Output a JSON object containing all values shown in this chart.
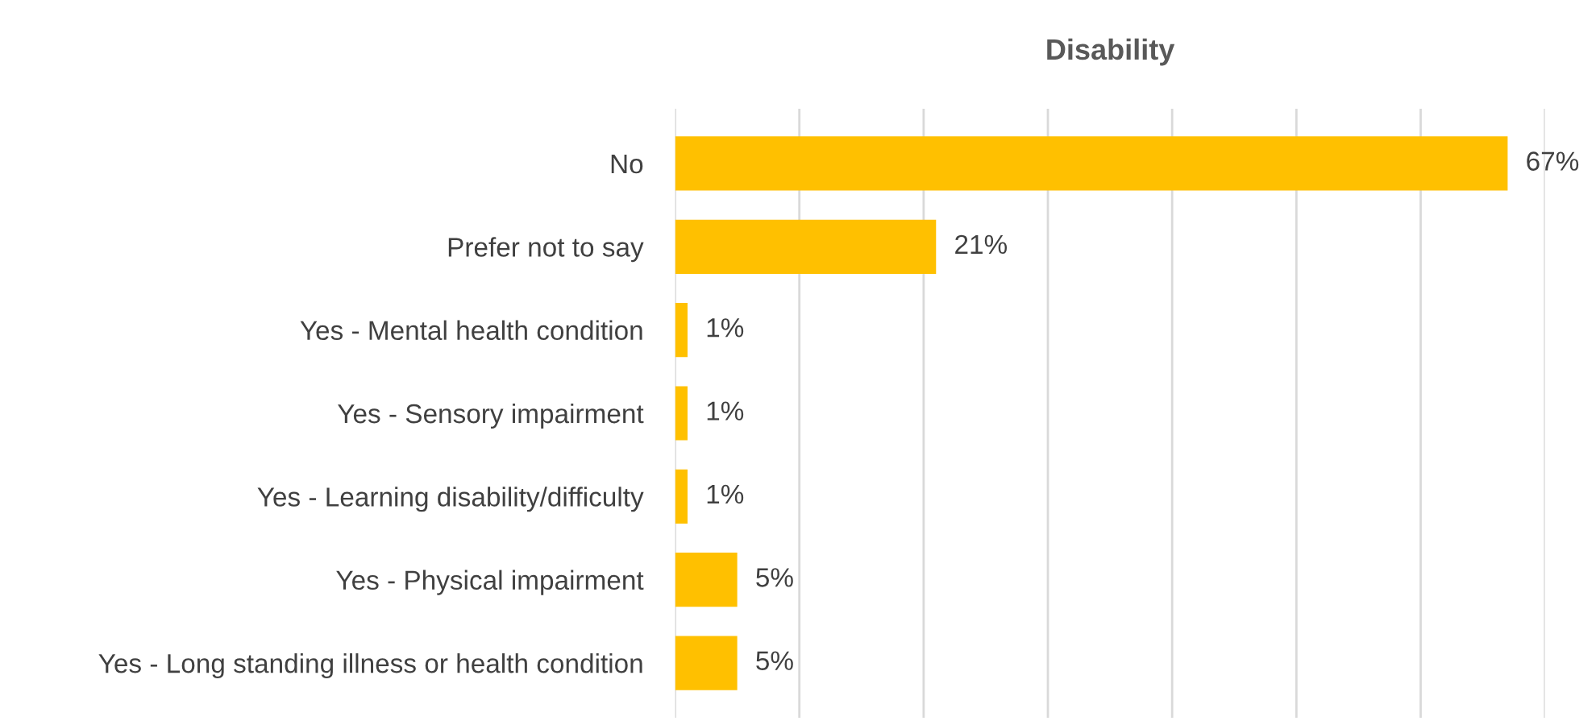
{
  "chart_data": {
    "type": "bar",
    "orientation": "horizontal",
    "title": "Disability",
    "categories": [
      "No",
      "Prefer not to say",
      "Yes - Mental health condition",
      "Yes - Sensory impairment",
      "Yes - Learning disability/difficulty",
      "Yes - Physical impairment",
      "Yes - Long standing illness or health condition"
    ],
    "values": [
      67,
      21,
      1,
      1,
      1,
      5,
      5
    ],
    "value_labels": [
      "67%",
      "21%",
      "1%",
      "1%",
      "1%",
      "5%",
      "5%"
    ],
    "color": "#ffc000",
    "xlim": [
      0,
      70
    ],
    "xticks": [
      {
        "value": 0,
        "label": null
      },
      {
        "value": 10,
        "label": null
      },
      {
        "value": 20,
        "label": null
      },
      {
        "value": 30,
        "label": null
      },
      {
        "value": 40,
        "label": null
      },
      {
        "value": 50,
        "label": null
      },
      {
        "value": 60,
        "label": null
      },
      {
        "value": 70,
        "label": null
      }
    ],
    "grid": "x",
    "legend": false
  }
}
